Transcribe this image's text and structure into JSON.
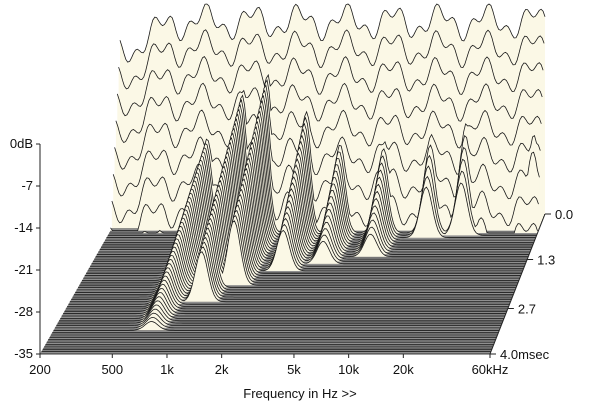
{
  "chart_data": {
    "type": "area",
    "title": "",
    "xlabel": "Frequency in Hz >>",
    "ylabel": "",
    "x_scale": "log",
    "xlim": [
      200,
      60000
    ],
    "ylim": [
      -35,
      0
    ],
    "zlim": [
      0,
      4.0
    ],
    "x_ticks": [
      200,
      500,
      1000,
      2000,
      5000,
      10000,
      20000,
      60000
    ],
    "x_tick_labels": [
      "200",
      "500",
      "1k",
      "2k",
      "5k",
      "10k",
      "20k",
      "60kHz"
    ],
    "y_ticks": [
      0,
      -7,
      -14,
      -21,
      -28,
      -35
    ],
    "y_tick_labels": [
      "0dB",
      "-7",
      "-14",
      "-21",
      "-28",
      "-35"
    ],
    "z_ticks": [
      0,
      1.3,
      2.7,
      4.0
    ],
    "z_tick_labels": [
      "0.0",
      "1.3",
      "2.7",
      "4.0msec"
    ],
    "slice_count": 60,
    "time_max_ms": 4.0,
    "grid": false,
    "legend": "none",
    "colors": {
      "fill": "#fbf8e6",
      "line": "#1a1a1a",
      "floor": "#8f8f8f",
      "floor_line": "#5c5c5c",
      "axis": "#222222"
    },
    "waterfall": {
      "description_free": true,
      "initial_level_db": -3,
      "ripple_db": 2,
      "modes": [
        {
          "freq_hz": 700,
          "level_db": -19,
          "decay_ms": 3.2
        },
        {
          "freq_hz": 1100,
          "level_db": -12,
          "decay_ms": 2.4
        },
        {
          "freq_hz": 1500,
          "level_db": -10,
          "decay_ms": 2.0
        },
        {
          "freq_hz": 2600,
          "level_db": -14,
          "decay_ms": 1.6
        },
        {
          "freq_hz": 4200,
          "level_db": -17,
          "decay_ms": 1.4
        },
        {
          "freq_hz": 7500,
          "level_db": -17,
          "decay_ms": 1.2
        },
        {
          "freq_hz": 14000,
          "level_db": -13,
          "decay_ms": 0.7
        },
        {
          "freq_hz": 22000,
          "level_db": -12,
          "decay_ms": 0.6
        },
        {
          "freq_hz": 55000,
          "level_db": -8,
          "decay_ms": 0.4
        }
      ]
    }
  }
}
